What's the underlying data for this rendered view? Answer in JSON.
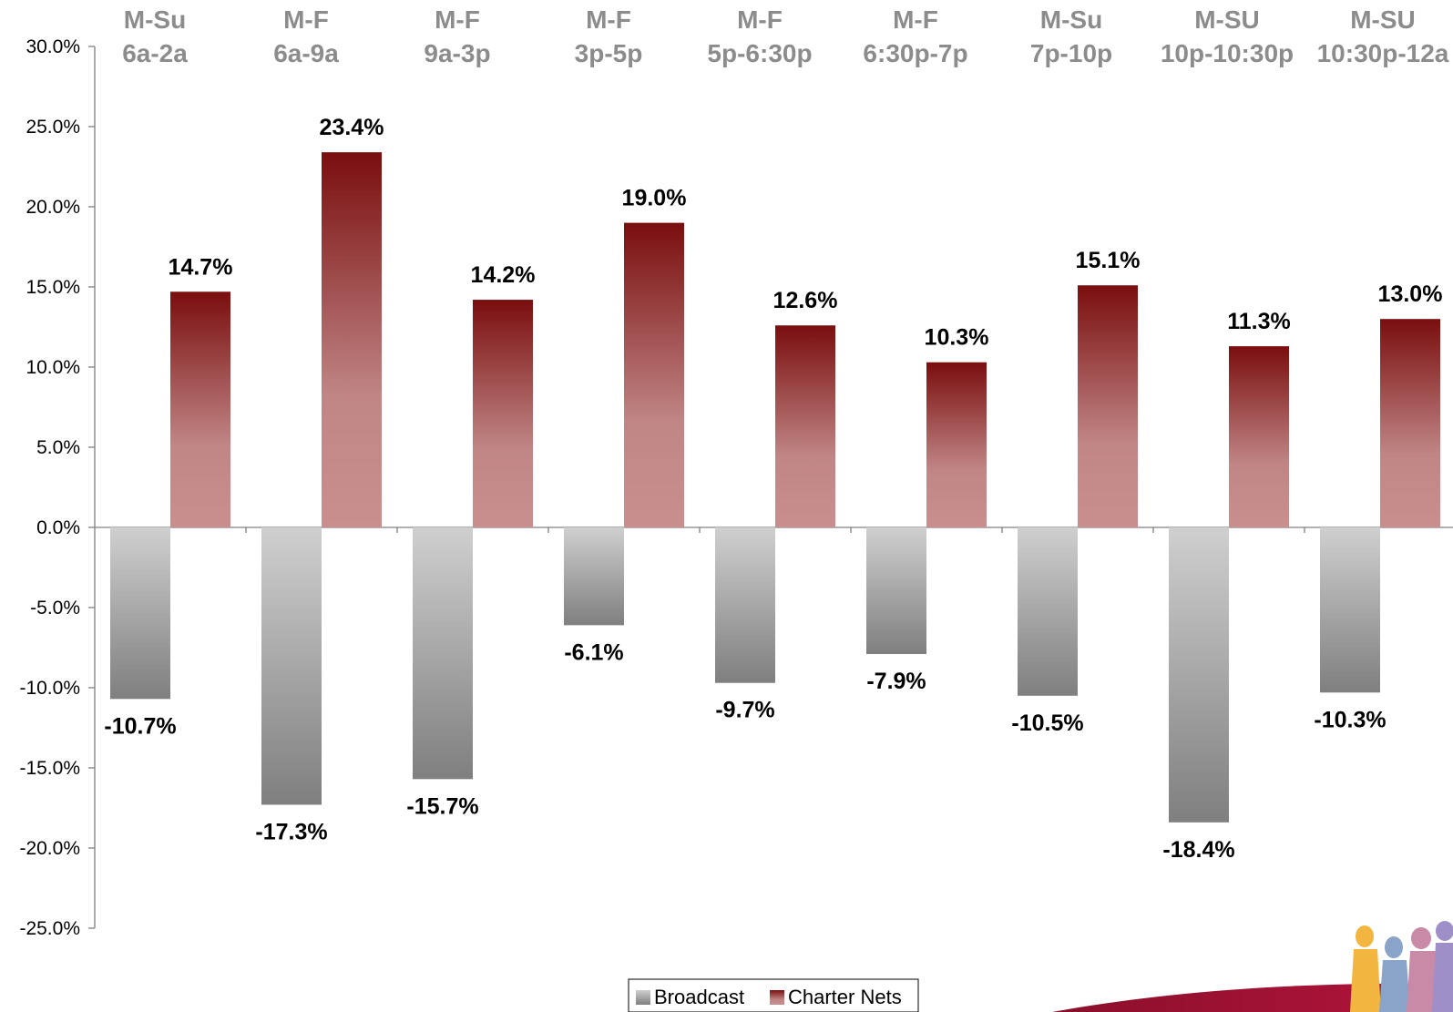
{
  "chart_data": {
    "type": "bar",
    "categories": [
      [
        "M-Su",
        "6a-2a"
      ],
      [
        "M-F",
        "6a-9a"
      ],
      [
        "M-F",
        "9a-3p"
      ],
      [
        "M-F",
        "3p-5p"
      ],
      [
        "M-F",
        "5p-6:30p"
      ],
      [
        "M-F",
        "6:30p-7p"
      ],
      [
        "M-Su",
        "7p-10p"
      ],
      [
        "M-SU",
        "10p-10:30p"
      ],
      [
        "M-SU",
        "10:30p-12a"
      ]
    ],
    "series": [
      {
        "name": "Broadcast",
        "values": [
          -10.7,
          -17.3,
          -15.7,
          -6.1,
          -9.7,
          -7.9,
          -10.5,
          -18.4,
          -10.3
        ],
        "labels": [
          "-10.7%",
          "-17.3%",
          "-15.7%",
          "-6.1%",
          "-9.7%",
          "-7.9%",
          "-10.5%",
          "-18.4%",
          "-10.3%"
        ],
        "color_light": "#cfcfcf",
        "color_dark": "#7f7f7f"
      },
      {
        "name": "Charter Nets",
        "values": [
          14.7,
          23.4,
          14.2,
          19.0,
          12.6,
          10.3,
          15.1,
          11.3,
          13.0
        ],
        "labels": [
          "14.7%",
          "23.4%",
          "14.2%",
          "19.0%",
          "12.6%",
          "10.3%",
          "15.1%",
          "11.3%",
          "13.0%"
        ],
        "color_light": "#c98f8f",
        "color_dark": "#7a0e0e"
      }
    ],
    "ylim": [
      -25,
      30
    ],
    "yticks": [
      30,
      25,
      20,
      15,
      10,
      5,
      0,
      -5,
      -10,
      -15,
      -20,
      -25
    ],
    "ytick_labels": [
      "30.0%",
      "25.0%",
      "20.0%",
      "15.0%",
      "10.0%",
      "5.0%",
      "0.0%",
      "-5.0%",
      "-10.0%",
      "-15.0%",
      "-20.0%",
      "-25.0%"
    ],
    "category_label_color": "#8c8c8c",
    "grid": false,
    "legend_position": "bottom-center"
  },
  "legend": {
    "broadcast_label": "Broadcast",
    "charter_label": "Charter Nets"
  }
}
